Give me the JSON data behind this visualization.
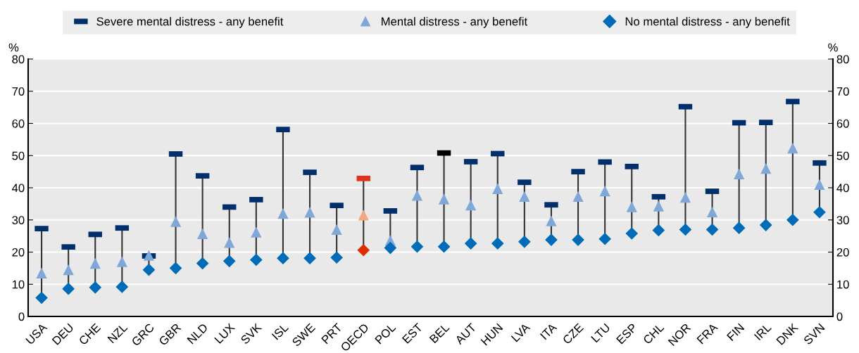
{
  "chart_data": {
    "type": "scatter",
    "ylabel": "%",
    "y2label": "%",
    "categories": [
      "USA",
      "DEU",
      "CHE",
      "NZL",
      "GRC",
      "GBR",
      "NLD",
      "LUX",
      "SVK",
      "ISL",
      "SWE",
      "PRT",
      "OECD",
      "POL",
      "EST",
      "BEL",
      "AUT",
      "HUN",
      "LVA",
      "ITA",
      "CZE",
      "LTU",
      "ESP",
      "CHL",
      "NOR",
      "FRA",
      "FIN",
      "IRL",
      "DNK",
      "SVN"
    ],
    "series": [
      {
        "name": "Severe mental distress - any benefit",
        "marker": "square",
        "color": "#002f6c",
        "colors": [
          "#002f6c",
          "#002f6c",
          "#002f6c",
          "#002f6c",
          "#002f6c",
          "#002f6c",
          "#002f6c",
          "#002f6c",
          "#002f6c",
          "#002f6c",
          "#002f6c",
          "#002f6c",
          "#e0301e",
          "#002f6c",
          "#002f6c",
          "#000000",
          "#002f6c",
          "#002f6c",
          "#002f6c",
          "#002f6c",
          "#002f6c",
          "#002f6c",
          "#002f6c",
          "#002f6c",
          "#002f6c",
          "#002f6c",
          "#002f6c",
          "#002f6c",
          "#002f6c",
          "#002f6c"
        ],
        "values": [
          27.3,
          21.6,
          25.5,
          27.5,
          18.8,
          50.5,
          43.7,
          34.0,
          36.3,
          58.1,
          44.8,
          34.5,
          42.9,
          32.8,
          46.3,
          50.8,
          48.1,
          50.6,
          41.7,
          34.7,
          45.0,
          48.0,
          46.6,
          37.2,
          65.2,
          38.9,
          60.2,
          60.3,
          66.8,
          47.7
        ]
      },
      {
        "name": "Mental distress - any benefit",
        "marker": "triangle",
        "color": "#7fa8d9",
        "colors": [
          "#7fa8d9",
          "#7fa8d9",
          "#7fa8d9",
          "#7fa8d9",
          "#7fa8d9",
          "#7fa8d9",
          "#7fa8d9",
          "#7fa8d9",
          "#7fa8d9",
          "#7fa8d9",
          "#7fa8d9",
          "#7fa8d9",
          "#f4a582",
          "#7fa8d9",
          "#7fa8d9",
          "#7fa8d9",
          "#7fa8d9",
          "#7fa8d9",
          "#7fa8d9",
          "#7fa8d9",
          "#7fa8d9",
          "#7fa8d9",
          "#7fa8d9",
          "#7fa8d9",
          "#7fa8d9",
          "#7fa8d9",
          "#7fa8d9",
          "#7fa8d9",
          "#7fa8d9",
          "#7fa8d9"
        ],
        "values": [
          13.5,
          14.5,
          16.5,
          17.0,
          19.0,
          29.5,
          25.7,
          23.0,
          26.2,
          32.0,
          32.4,
          27.0,
          31.5,
          23.6,
          37.6,
          36.5,
          34.6,
          39.7,
          37.3,
          29.7,
          37.3,
          39.0,
          34.1,
          34.3,
          37.0,
          32.5,
          44.3,
          46.0,
          52.3,
          41.0
        ]
      },
      {
        "name": "No mental distress - any benefit",
        "marker": "diamond",
        "color": "#006bb6",
        "colors": [
          "#006bb6",
          "#006bb6",
          "#006bb6",
          "#006bb6",
          "#006bb6",
          "#006bb6",
          "#006bb6",
          "#006bb6",
          "#006bb6",
          "#006bb6",
          "#006bb6",
          "#006bb6",
          "#dc2e00",
          "#006bb6",
          "#006bb6",
          "#006bb6",
          "#006bb6",
          "#006bb6",
          "#006bb6",
          "#006bb6",
          "#006bb6",
          "#006bb6",
          "#006bb6",
          "#006bb6",
          "#006bb6",
          "#006bb6",
          "#006bb6",
          "#006bb6",
          "#006bb6",
          "#006bb6"
        ],
        "values": [
          5.8,
          8.6,
          9.0,
          9.2,
          14.5,
          15.0,
          16.5,
          17.2,
          17.6,
          18.1,
          18.1,
          18.3,
          20.6,
          21.3,
          21.7,
          21.7,
          22.7,
          22.7,
          23.2,
          23.8,
          23.8,
          24.1,
          25.8,
          26.8,
          27.0,
          27.0,
          27.5,
          28.4,
          30.0,
          32.4
        ]
      }
    ],
    "ylim": [
      0,
      80
    ],
    "yticks": [
      0,
      10,
      20,
      30,
      40,
      50,
      60,
      70,
      80
    ],
    "y2lim": [
      0,
      80
    ],
    "y2ticks": [
      0,
      10,
      20,
      30,
      40,
      50,
      60,
      70,
      80
    ],
    "grid": true,
    "legend": "top"
  }
}
